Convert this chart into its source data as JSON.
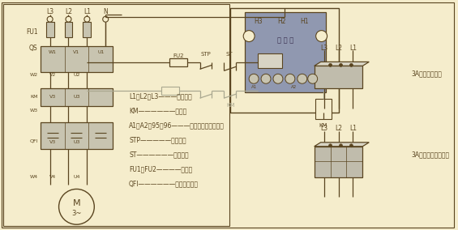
{
  "bg_color": "#f5edcc",
  "line_color": "#5a4520",
  "line_color_gray": "#aaa890",
  "box_face": "#c8c4b0",
  "box_face2": "#b0ae9e",
  "prot_face": "#9098b0",
  "text_color": "#5a4520",
  "legend_lines": [
    "L1、L2、L3———三相电源",
    "KM——————接触器",
    "A1、A2、95、96———保护器接线端子号码",
    "STP—————停止按鈕",
    "ST——————启动按鈕",
    "FU1、FU2————燕断器",
    "QFI——————电动机保护器"
  ],
  "right_label1": "3A以上一次穿心",
  "right_label2": "3A以下各相二次穿心",
  "protector_label": "保 护 器"
}
